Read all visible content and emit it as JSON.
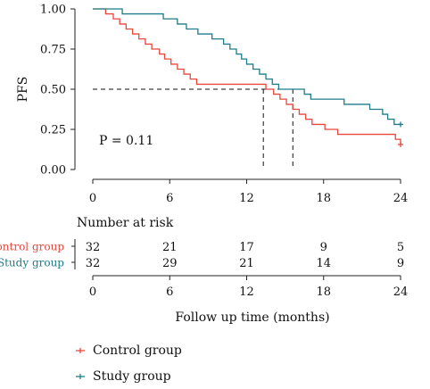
{
  "chart_data": {
    "type": "line",
    "title": "",
    "ylabel": "PFS",
    "xlabel": "Follow up time (months)",
    "xlim": [
      0,
      24
    ],
    "ylim": [
      0,
      1
    ],
    "x_ticks": [
      "0",
      "6",
      "12",
      "18",
      "24"
    ],
    "y_ticks": [
      "0.00",
      "0.25",
      "0.50",
      "0.75",
      "1.00"
    ],
    "annotation": "P = 0.11",
    "median_lines": [
      13.3,
      15.6
    ],
    "series": [
      {
        "name": "Control group",
        "color": "#e8473c",
        "x": [
          0,
          1,
          1.6,
          2.1,
          2.6,
          3.1,
          3.6,
          4.1,
          4.6,
          5.2,
          5.6,
          6.1,
          6.6,
          7.1,
          7.6,
          8.1,
          13.5,
          14.1,
          14.6,
          15.1,
          15.6,
          16.1,
          16.6,
          17.1,
          18.1,
          18.6,
          19.1,
          20.1,
          23.6,
          24.0
        ],
        "y": [
          1.0,
          0.969,
          0.938,
          0.906,
          0.875,
          0.844,
          0.813,
          0.781,
          0.75,
          0.719,
          0.688,
          0.656,
          0.625,
          0.594,
          0.563,
          0.531,
          0.5,
          0.469,
          0.438,
          0.406,
          0.375,
          0.344,
          0.313,
          0.281,
          0.25,
          0.25,
          0.219,
          0.219,
          0.188,
          0.156
        ],
        "censor_x": [
          24.0
        ],
        "censor_y": [
          0.156
        ]
      },
      {
        "name": "Study group",
        "color": "#1f7c8a",
        "x": [
          0,
          2.3,
          5.5,
          6.6,
          7.3,
          8.2,
          9.3,
          10.2,
          10.7,
          11.2,
          11.6,
          12.0,
          12.5,
          13.0,
          13.5,
          14.0,
          14.5,
          16.5,
          17.0,
          19.1,
          19.6,
          20.6,
          21.6,
          22.6,
          23.0,
          23.5,
          24.0
        ],
        "y": [
          1.0,
          0.969,
          0.938,
          0.906,
          0.875,
          0.844,
          0.813,
          0.781,
          0.75,
          0.719,
          0.688,
          0.656,
          0.625,
          0.594,
          0.563,
          0.531,
          0.5,
          0.469,
          0.438,
          0.438,
          0.406,
          0.406,
          0.375,
          0.344,
          0.313,
          0.281,
          0.281
        ],
        "censor_x": [
          24.0
        ],
        "censor_y": [
          0.281
        ]
      }
    ]
  },
  "risk_table": {
    "title": "Number at risk",
    "x_ticks": [
      "0",
      "6",
      "12",
      "18",
      "24"
    ],
    "rows": [
      {
        "name": "Control group",
        "color": "#e8473c",
        "values": [
          "32",
          "21",
          "17",
          "9",
          "5"
        ]
      },
      {
        "name": "Study group",
        "color": "#1f7c8a",
        "values": [
          "32",
          "29",
          "21",
          "14",
          "9"
        ]
      }
    ]
  },
  "legend": [
    {
      "label": "Control group",
      "color": "#e8473c"
    },
    {
      "label": "Study group",
      "color": "#1f7c8a"
    }
  ]
}
